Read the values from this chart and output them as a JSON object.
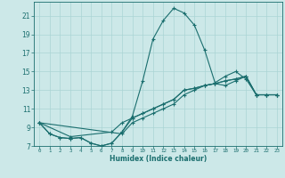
{
  "xlabel": "Humidex (Indice chaleur)",
  "bg_color": "#cce8e8",
  "grid_color": "#aad4d4",
  "line_color": "#1a6e6e",
  "xlim": [
    -0.5,
    23.5
  ],
  "ylim": [
    7,
    22.5
  ],
  "yticks": [
    7,
    9,
    11,
    13,
    15,
    17,
    19,
    21
  ],
  "xticks": [
    0,
    1,
    2,
    3,
    4,
    5,
    6,
    7,
    8,
    9,
    10,
    11,
    12,
    13,
    14,
    15,
    16,
    17,
    18,
    19,
    20,
    21,
    22,
    23
  ],
  "series1": [
    [
      0,
      9.5
    ],
    [
      1,
      8.3
    ],
    [
      2,
      7.9
    ],
    [
      3,
      7.8
    ],
    [
      4,
      7.9
    ],
    [
      5,
      7.3
    ],
    [
      6,
      7.0
    ],
    [
      7,
      7.3
    ],
    [
      8,
      8.5
    ],
    [
      9,
      10.2
    ],
    [
      10,
      14.0
    ],
    [
      11,
      18.5
    ],
    [
      12,
      20.5
    ],
    [
      13,
      21.8
    ],
    [
      14,
      21.3
    ],
    [
      15,
      20.0
    ],
    [
      16,
      17.3
    ],
    [
      17,
      13.8
    ],
    [
      18,
      14.5
    ],
    [
      19,
      15.0
    ],
    [
      20,
      14.2
    ],
    [
      21,
      12.5
    ],
    [
      22,
      12.5
    ],
    [
      23,
      12.5
    ]
  ],
  "series2": [
    [
      0,
      9.5
    ],
    [
      1,
      8.3
    ],
    [
      2,
      7.9
    ],
    [
      3,
      7.8
    ],
    [
      4,
      7.9
    ],
    [
      5,
      7.3
    ],
    [
      6,
      7.0
    ],
    [
      7,
      7.3
    ],
    [
      8,
      8.5
    ],
    [
      9,
      10.0
    ],
    [
      10,
      10.5
    ],
    [
      11,
      11.0
    ],
    [
      12,
      11.5
    ],
    [
      13,
      12.0
    ],
    [
      14,
      13.0
    ],
    [
      15,
      13.2
    ],
    [
      16,
      13.5
    ],
    [
      17,
      13.7
    ],
    [
      18,
      14.0
    ],
    [
      19,
      14.2
    ],
    [
      20,
      14.5
    ],
    [
      21,
      12.5
    ],
    [
      22,
      12.5
    ],
    [
      23,
      12.5
    ]
  ],
  "series3": [
    [
      0,
      9.5
    ],
    [
      3,
      8.0
    ],
    [
      7,
      8.5
    ],
    [
      8,
      9.5
    ],
    [
      9,
      10.0
    ],
    [
      10,
      10.5
    ],
    [
      11,
      11.0
    ],
    [
      12,
      11.5
    ],
    [
      13,
      12.0
    ],
    [
      14,
      13.0
    ],
    [
      15,
      13.2
    ],
    [
      16,
      13.5
    ],
    [
      17,
      13.7
    ],
    [
      18,
      14.0
    ],
    [
      19,
      14.2
    ],
    [
      20,
      14.5
    ],
    [
      21,
      12.5
    ],
    [
      22,
      12.5
    ],
    [
      23,
      12.5
    ]
  ],
  "series4": [
    [
      0,
      9.5
    ],
    [
      8,
      8.3
    ],
    [
      9,
      9.5
    ],
    [
      10,
      10.0
    ],
    [
      11,
      10.5
    ],
    [
      12,
      11.0
    ],
    [
      13,
      11.5
    ],
    [
      14,
      12.5
    ],
    [
      15,
      13.0
    ],
    [
      16,
      13.5
    ],
    [
      17,
      13.7
    ],
    [
      18,
      13.5
    ],
    [
      19,
      14.0
    ],
    [
      20,
      14.5
    ],
    [
      21,
      12.5
    ],
    [
      22,
      12.5
    ],
    [
      23,
      12.5
    ]
  ]
}
